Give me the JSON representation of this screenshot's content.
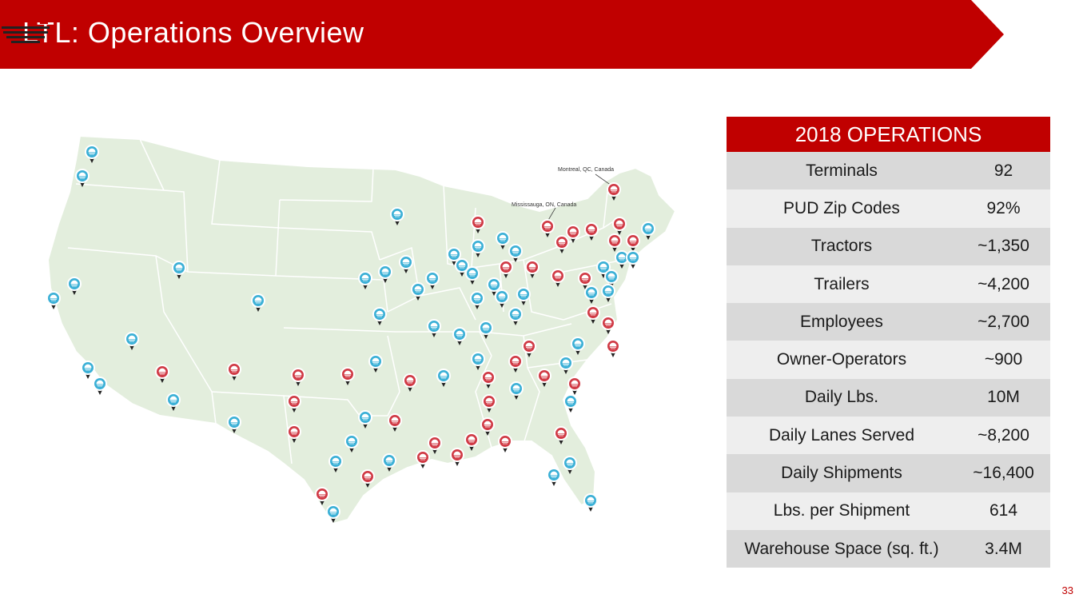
{
  "header": {
    "title": "LTL: Operations Overview",
    "color": "#c00000"
  },
  "map": {
    "labels": {
      "montreal": "Montreal, QC, Canada",
      "mississauga": "Mississauga, ON, Canada"
    },
    "land_color": "#e3eedd",
    "marker_colors": {
      "red": "#d03a45",
      "blue": "#3bb0d6"
    }
  },
  "operations": {
    "heading": "2018 OPERATIONS",
    "rows": [
      {
        "label": "Terminals",
        "value": "92"
      },
      {
        "label": "PUD Zip Codes",
        "value": "92%"
      },
      {
        "label": "Tractors",
        "value": "~1,350"
      },
      {
        "label": "Trailers",
        "value": "~4,200"
      },
      {
        "label": "Employees",
        "value": "~2,700"
      },
      {
        "label": "Owner-Operators",
        "value": "~900"
      },
      {
        "label": "Daily Lbs.",
        "value": "10M"
      },
      {
        "label": "Daily Lanes Served",
        "value": "~8,200"
      },
      {
        "label": "Daily Shipments",
        "value": "~16,400"
      },
      {
        "label": "Lbs. per Shipment",
        "value": "614"
      },
      {
        "label": "Warehouse Space (sq. ft.)",
        "value": "3.4M"
      }
    ]
  },
  "page_number": "33"
}
